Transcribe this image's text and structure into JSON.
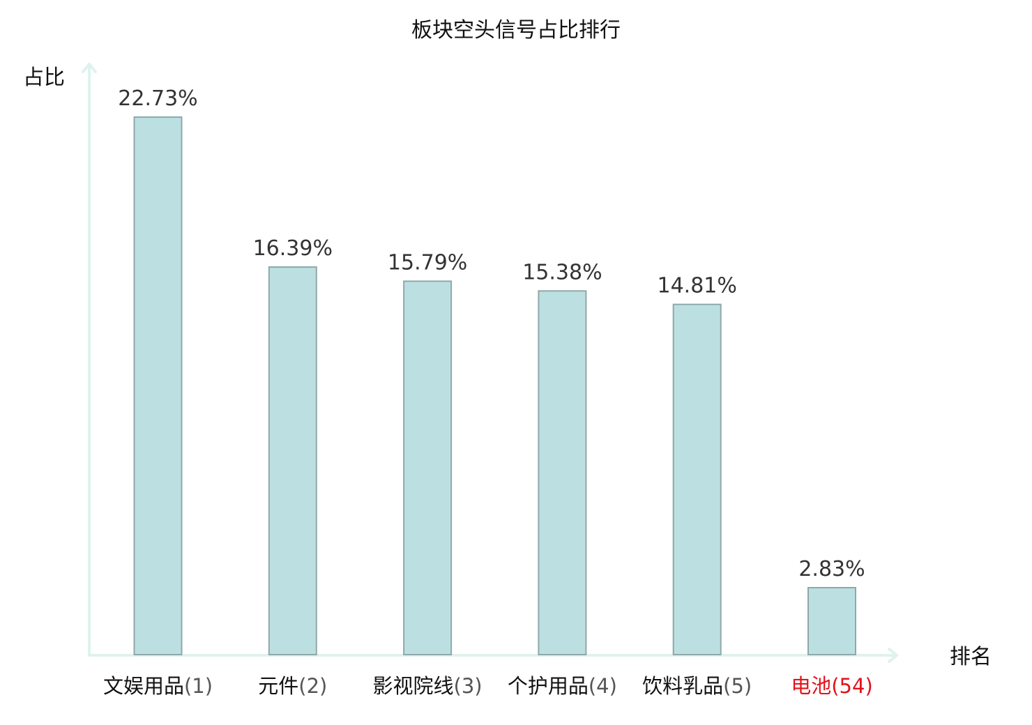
{
  "colors": {
    "bar_fill": "#bce0e2",
    "axis": "#dff2ee",
    "highlight_text": "#e3131b"
  },
  "chart_data": {
    "type": "bar",
    "title": "板块空头信号占比排行",
    "ylabel": "占比",
    "xlabel": "排名",
    "ylim": [
      0,
      24.5
    ],
    "grid": false,
    "categories": [
      {
        "name": "文娱用品",
        "rank": "(1)",
        "highlight": false
      },
      {
        "name": "元件",
        "rank": "(2)",
        "highlight": false
      },
      {
        "name": "影视院线",
        "rank": "(3)",
        "highlight": false
      },
      {
        "name": "个护用品",
        "rank": "(4)",
        "highlight": false
      },
      {
        "name": "饮料乳品",
        "rank": "(5)",
        "highlight": false
      },
      {
        "name": "电池",
        "rank": "(54)",
        "highlight": true
      }
    ],
    "values": [
      22.73,
      16.39,
      15.79,
      15.38,
      14.81,
      2.83
    ],
    "value_labels": [
      "22.73%",
      "16.39%",
      "15.79%",
      "15.38%",
      "14.81%",
      "2.83%"
    ]
  }
}
